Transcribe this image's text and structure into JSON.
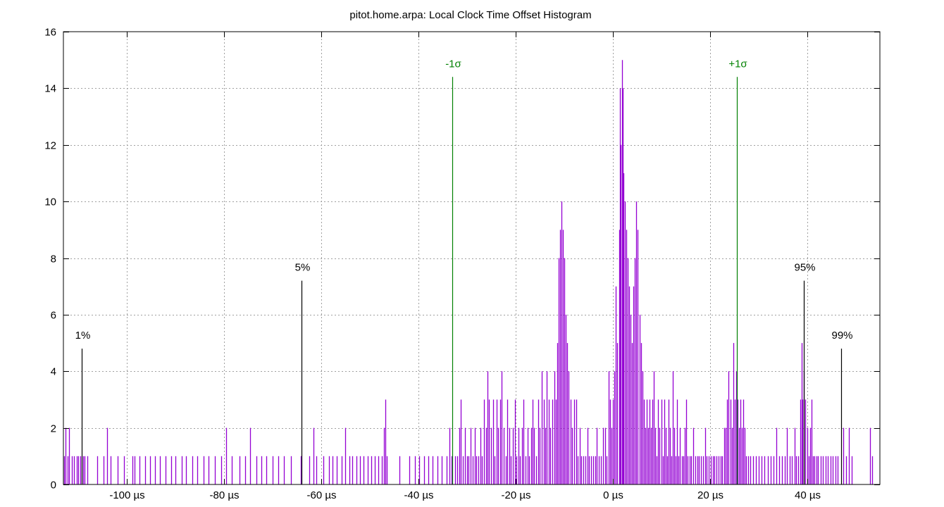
{
  "chart_data": {
    "type": "bar",
    "title": "pitot.home.arpa: Local Clock Time Offset Histogram",
    "xlabel": "",
    "ylabel": "",
    "xlim": [
      -113,
      55
    ],
    "ylim": [
      0,
      16
    ],
    "grid": true,
    "x_ticks": [
      {
        "value": -100,
        "label": "-100 µs"
      },
      {
        "value": -80,
        "label": "-80 µs"
      },
      {
        "value": -60,
        "label": "-60 µs"
      },
      {
        "value": -40,
        "label": "-40 µs"
      },
      {
        "value": -20,
        "label": "-20 µs"
      },
      {
        "value": 0,
        "label": "0 µs"
      },
      {
        "value": 20,
        "label": "20 µs"
      },
      {
        "value": 40,
        "label": "40 µs"
      }
    ],
    "y_ticks": [
      {
        "value": 0,
        "label": "0"
      },
      {
        "value": 2,
        "label": "2"
      },
      {
        "value": 4,
        "label": "4"
      },
      {
        "value": 6,
        "label": "6"
      },
      {
        "value": 8,
        "label": "8"
      },
      {
        "value": 10,
        "label": "10"
      },
      {
        "value": 12,
        "label": "12"
      },
      {
        "value": 14,
        "label": "14"
      },
      {
        "value": 16,
        "label": "16"
      }
    ],
    "markers": [
      {
        "label": "1%",
        "x": -109.2,
        "height": 4.8,
        "color": "#000000"
      },
      {
        "label": "5%",
        "x": -64.0,
        "height": 7.2,
        "color": "#000000"
      },
      {
        "label": "-1σ",
        "x": -33.0,
        "height": 14.4,
        "color": "#008000"
      },
      {
        "label": "+1σ",
        "x": 25.6,
        "height": 14.4,
        "color": "#008000"
      },
      {
        "label": "95%",
        "x": 39.3,
        "height": 7.2,
        "color": "#000000"
      },
      {
        "label": "99%",
        "x": 47.0,
        "height": 4.8,
        "color": "#000000"
      }
    ],
    "bar_color": "#9400d3",
    "bins": [
      [
        -112.8,
        1
      ],
      [
        -112.5,
        2
      ],
      [
        -112.2,
        1
      ],
      [
        -111.8,
        2
      ],
      [
        -111.3,
        1
      ],
      [
        -110.8,
        1
      ],
      [
        -110.3,
        1
      ],
      [
        -109.9,
        1
      ],
      [
        -109.5,
        1
      ],
      [
        -109.0,
        1
      ],
      [
        -108.6,
        1
      ],
      [
        -108.1,
        1
      ],
      [
        -106.0,
        1
      ],
      [
        -104.7,
        1
      ],
      [
        -104.0,
        2
      ],
      [
        -103.3,
        1
      ],
      [
        -101.8,
        1
      ],
      [
        -100.6,
        1
      ],
      [
        -98.8,
        1
      ],
      [
        -98.3,
        1
      ],
      [
        -97.3,
        1
      ],
      [
        -96.2,
        1
      ],
      [
        -95.2,
        1
      ],
      [
        -94.2,
        1
      ],
      [
        -93.1,
        1
      ],
      [
        -92.0,
        1
      ],
      [
        -90.8,
        1
      ],
      [
        -89.9,
        1
      ],
      [
        -88.6,
        1
      ],
      [
        -87.8,
        1
      ],
      [
        -86.5,
        1
      ],
      [
        -85.4,
        1
      ],
      [
        -84.2,
        1
      ],
      [
        -83.1,
        1
      ],
      [
        -81.8,
        1
      ],
      [
        -80.5,
        1
      ],
      [
        -79.5,
        2
      ],
      [
        -78.4,
        1
      ],
      [
        -76.8,
        1
      ],
      [
        -75.6,
        1
      ],
      [
        -74.6,
        2
      ],
      [
        -73.3,
        1
      ],
      [
        -72.2,
        1
      ],
      [
        -71.2,
        1
      ],
      [
        -70.0,
        1
      ],
      [
        -68.8,
        1
      ],
      [
        -67.7,
        1
      ],
      [
        -66.2,
        1
      ],
      [
        -64.2,
        1
      ],
      [
        -62.4,
        1
      ],
      [
        -61.6,
        2
      ],
      [
        -60.9,
        1
      ],
      [
        -59.5,
        1
      ],
      [
        -58.3,
        1
      ],
      [
        -57.7,
        1
      ],
      [
        -56.7,
        1
      ],
      [
        -55.8,
        1
      ],
      [
        -55.0,
        2
      ],
      [
        -54.2,
        1
      ],
      [
        -53.5,
        1
      ],
      [
        -52.7,
        1
      ],
      [
        -52.0,
        1
      ],
      [
        -51.3,
        1
      ],
      [
        -50.4,
        1
      ],
      [
        -49.7,
        1
      ],
      [
        -48.9,
        1
      ],
      [
        -48.2,
        1
      ],
      [
        -47.5,
        1
      ],
      [
        -47.0,
        2
      ],
      [
        -46.8,
        3
      ],
      [
        -46.4,
        1
      ],
      [
        -43.8,
        1
      ],
      [
        -41.8,
        1
      ],
      [
        -40.7,
        1
      ],
      [
        -39.8,
        1
      ],
      [
        -38.8,
        1
      ],
      [
        -37.9,
        1
      ],
      [
        -37.0,
        1
      ],
      [
        -36.1,
        1
      ],
      [
        -35.2,
        1
      ],
      [
        -34.1,
        1
      ],
      [
        -33.5,
        2
      ],
      [
        -33.1,
        1
      ],
      [
        -32.4,
        1
      ],
      [
        -32.0,
        1
      ],
      [
        -31.6,
        2
      ],
      [
        -31.2,
        3
      ],
      [
        -30.8,
        1
      ],
      [
        -30.4,
        2
      ],
      [
        -30.0,
        1
      ],
      [
        -29.6,
        1
      ],
      [
        -29.2,
        2
      ],
      [
        -28.8,
        1
      ],
      [
        -28.4,
        2
      ],
      [
        -28.0,
        1
      ],
      [
        -27.6,
        1
      ],
      [
        -27.2,
        2
      ],
      [
        -26.9,
        1
      ],
      [
        -26.5,
        3
      ],
      [
        -26.1,
        2
      ],
      [
        -25.8,
        4
      ],
      [
        -25.4,
        3
      ],
      [
        -25.0,
        2
      ],
      [
        -24.6,
        3
      ],
      [
        -24.3,
        1
      ],
      [
        -23.9,
        3
      ],
      [
        -23.5,
        2
      ],
      [
        -23.1,
        3
      ],
      [
        -22.8,
        4
      ],
      [
        -22.4,
        2
      ],
      [
        -22.0,
        1
      ],
      [
        -21.7,
        3
      ],
      [
        -21.3,
        2
      ],
      [
        -20.9,
        1
      ],
      [
        -20.5,
        2
      ],
      [
        -20.1,
        3
      ],
      [
        -19.8,
        1
      ],
      [
        -19.4,
        2
      ],
      [
        -19.0,
        1
      ],
      [
        -18.7,
        2
      ],
      [
        -18.3,
        3
      ],
      [
        -17.9,
        1
      ],
      [
        -17.5,
        2
      ],
      [
        -17.2,
        1
      ],
      [
        -16.8,
        2
      ],
      [
        -16.4,
        3
      ],
      [
        -16.1,
        2
      ],
      [
        -15.7,
        1
      ],
      [
        -15.3,
        3
      ],
      [
        -15.0,
        2
      ],
      [
        -14.6,
        4
      ],
      [
        -14.2,
        3
      ],
      [
        -13.9,
        2
      ],
      [
        -13.5,
        4
      ],
      [
        -13.1,
        3
      ],
      [
        -12.8,
        2
      ],
      [
        -12.4,
        3
      ],
      [
        -12.0,
        4
      ],
      [
        -11.7,
        3
      ],
      [
        -11.4,
        5
      ],
      [
        -11.1,
        8
      ],
      [
        -10.8,
        9
      ],
      [
        -10.5,
        10
      ],
      [
        -10.2,
        9
      ],
      [
        -9.9,
        8
      ],
      [
        -9.6,
        6
      ],
      [
        -9.3,
        5
      ],
      [
        -9.0,
        4
      ],
      [
        -8.7,
        3
      ],
      [
        -8.3,
        2
      ],
      [
        -7.9,
        3
      ],
      [
        -7.5,
        3
      ],
      [
        -7.2,
        1
      ],
      [
        -6.8,
        2
      ],
      [
        -6.4,
        1
      ],
      [
        -6.0,
        1
      ],
      [
        -5.6,
        1
      ],
      [
        -5.2,
        2
      ],
      [
        -4.8,
        1
      ],
      [
        -4.4,
        1
      ],
      [
        -4.0,
        1
      ],
      [
        -3.6,
        1
      ],
      [
        -3.2,
        2
      ],
      [
        -2.8,
        1
      ],
      [
        -2.4,
        1
      ],
      [
        -2.0,
        2
      ],
      [
        -1.6,
        2
      ],
      [
        -1.2,
        1
      ],
      [
        -0.8,
        4
      ],
      [
        -0.5,
        3
      ],
      [
        -0.2,
        2
      ],
      [
        0.1,
        3
      ],
      [
        0.4,
        4
      ],
      [
        0.7,
        7
      ],
      [
        1.0,
        5
      ],
      [
        1.3,
        9
      ],
      [
        1.5,
        14
      ],
      [
        1.7,
        12
      ],
      [
        1.9,
        15
      ],
      [
        2.1,
        14
      ],
      [
        2.3,
        11
      ],
      [
        2.5,
        10
      ],
      [
        2.8,
        9
      ],
      [
        3.1,
        8
      ],
      [
        3.4,
        7
      ],
      [
        3.7,
        6
      ],
      [
        4.0,
        5
      ],
      [
        4.3,
        7
      ],
      [
        4.6,
        8
      ],
      [
        4.9,
        10
      ],
      [
        5.2,
        9
      ],
      [
        5.5,
        6
      ],
      [
        5.8,
        5
      ],
      [
        6.1,
        4
      ],
      [
        6.4,
        3
      ],
      [
        6.7,
        2
      ],
      [
        7.0,
        3
      ],
      [
        7.3,
        2
      ],
      [
        7.6,
        3
      ],
      [
        7.9,
        2
      ],
      [
        8.2,
        3
      ],
      [
        8.5,
        4
      ],
      [
        8.8,
        2
      ],
      [
        9.1,
        1
      ],
      [
        9.4,
        3
      ],
      [
        9.7,
        2
      ],
      [
        10.0,
        3
      ],
      [
        10.3,
        1
      ],
      [
        10.6,
        3
      ],
      [
        10.9,
        2
      ],
      [
        11.2,
        1
      ],
      [
        11.5,
        3
      ],
      [
        11.8,
        2
      ],
      [
        12.1,
        1
      ],
      [
        12.4,
        4
      ],
      [
        12.7,
        2
      ],
      [
        13.0,
        1
      ],
      [
        13.3,
        3
      ],
      [
        13.6,
        1
      ],
      [
        13.9,
        2
      ],
      [
        14.2,
        1
      ],
      [
        14.5,
        1
      ],
      [
        14.8,
        2
      ],
      [
        15.1,
        3
      ],
      [
        15.4,
        1
      ],
      [
        15.8,
        1
      ],
      [
        16.2,
        1
      ],
      [
        16.6,
        2
      ],
      [
        17.0,
        1
      ],
      [
        17.4,
        1
      ],
      [
        17.8,
        1
      ],
      [
        18.2,
        1
      ],
      [
        18.6,
        1
      ],
      [
        19.0,
        2
      ],
      [
        19.4,
        1
      ],
      [
        19.8,
        1
      ],
      [
        20.2,
        1
      ],
      [
        20.6,
        1
      ],
      [
        21.0,
        1
      ],
      [
        21.4,
        1
      ],
      [
        21.8,
        1
      ],
      [
        22.2,
        1
      ],
      [
        22.6,
        1
      ],
      [
        23.0,
        2
      ],
      [
        23.3,
        2
      ],
      [
        23.6,
        3
      ],
      [
        23.9,
        4
      ],
      [
        24.2,
        3
      ],
      [
        24.5,
        2
      ],
      [
        24.8,
        5
      ],
      [
        25.1,
        3
      ],
      [
        25.4,
        4
      ],
      [
        25.7,
        3
      ],
      [
        26.0,
        2
      ],
      [
        26.3,
        3
      ],
      [
        26.6,
        2
      ],
      [
        26.9,
        3
      ],
      [
        27.2,
        2
      ],
      [
        27.5,
        1
      ],
      [
        27.9,
        1
      ],
      [
        28.4,
        1
      ],
      [
        28.9,
        1
      ],
      [
        29.5,
        1
      ],
      [
        30.1,
        1
      ],
      [
        30.7,
        1
      ],
      [
        31.3,
        1
      ],
      [
        31.9,
        1
      ],
      [
        32.5,
        1
      ],
      [
        33.1,
        1
      ],
      [
        33.7,
        2
      ],
      [
        34.3,
        1
      ],
      [
        34.9,
        1
      ],
      [
        35.4,
        1
      ],
      [
        35.9,
        2
      ],
      [
        36.4,
        1
      ],
      [
        36.9,
        1
      ],
      [
        37.4,
        2
      ],
      [
        37.8,
        1
      ],
      [
        38.2,
        1
      ],
      [
        38.6,
        3
      ],
      [
        38.9,
        5
      ],
      [
        39.1,
        3
      ],
      [
        39.4,
        4
      ],
      [
        39.7,
        3
      ],
      [
        40.0,
        2
      ],
      [
        40.3,
        1
      ],
      [
        40.6,
        2
      ],
      [
        40.9,
        3
      ],
      [
        41.2,
        1
      ],
      [
        41.5,
        1
      ],
      [
        41.9,
        1
      ],
      [
        42.3,
        1
      ],
      [
        42.8,
        1
      ],
      [
        43.3,
        1
      ],
      [
        43.8,
        1
      ],
      [
        44.3,
        1
      ],
      [
        44.8,
        1
      ],
      [
        45.3,
        1
      ],
      [
        45.8,
        1
      ],
      [
        46.3,
        1
      ],
      [
        47.4,
        2
      ],
      [
        48.1,
        1
      ],
      [
        48.6,
        2
      ],
      [
        49.2,
        1
      ],
      [
        52.9,
        2
      ],
      [
        53.4,
        1
      ]
    ]
  }
}
